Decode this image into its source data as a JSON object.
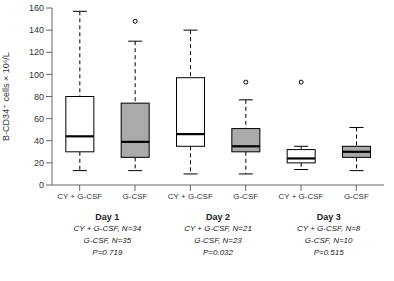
{
  "chart_data": {
    "type": "box",
    "ylabel": "B-CD34⁺ cells × 10⁶/L",
    "ylim": [
      0,
      160
    ],
    "yticks": [
      0,
      20,
      40,
      60,
      80,
      100,
      120,
      140,
      160
    ],
    "categories": [
      "CY + G-CSF",
      "G-CSF",
      "CY + G-CSF",
      "G-CSF",
      "CY + G-CSF",
      "G-CSF"
    ],
    "boxes": [
      {
        "q1": 30,
        "median": 44,
        "q3": 80,
        "whislo": 13,
        "whishi": 157,
        "fliers": []
      },
      {
        "q1": 25,
        "median": 39,
        "q3": 74,
        "whislo": 13,
        "whishi": 130,
        "fliers": [
          148
        ]
      },
      {
        "q1": 35,
        "median": 46,
        "q3": 97,
        "whislo": 10,
        "whishi": 140,
        "fliers": []
      },
      {
        "q1": 30,
        "median": 35,
        "q3": 51,
        "whislo": 10,
        "whishi": 77,
        "fliers": [
          93
        ]
      },
      {
        "q1": 20,
        "median": 24,
        "q3": 32,
        "whislo": 14,
        "whishi": 35,
        "fliers": [
          93
        ]
      },
      {
        "q1": 25,
        "median": 30,
        "q3": 35,
        "whislo": 13,
        "whishi": 52,
        "fliers": []
      }
    ],
    "colors": [
      "white",
      "#aaaaaa",
      "white",
      "#aaaaaa",
      "white",
      "#aaaaaa"
    ],
    "annotations": [
      [
        "Day 1",
        "CY + G-CSF, N=34",
        "G-CSF, N=35",
        "P=0.719"
      ],
      [
        "Day 2",
        "CY + G-CSF, N=21",
        "G-CSF, N=23",
        "P=0.032"
      ],
      [
        "Day 3",
        "CY + G-CSF, N=8",
        "G-CSF, N=10",
        "P=0.515"
      ]
    ]
  }
}
